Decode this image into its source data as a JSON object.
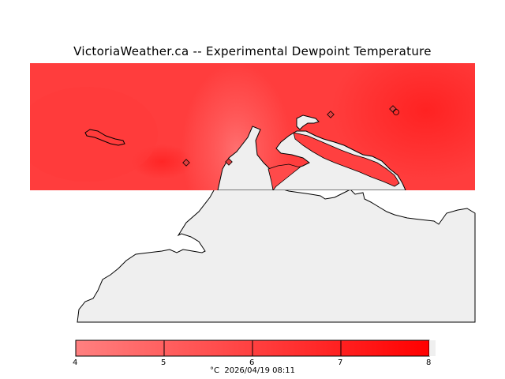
{
  "title": "VictoriaWeather.ca -- Experimental Dewpoint Temperature",
  "legend": {
    "ticks": [
      "4",
      "5",
      "6",
      "7",
      "8"
    ],
    "unit": "°C",
    "timestamp": "2026/04/19 08:11",
    "color_low": "#ff8080",
    "color_high": "#ff0000"
  },
  "colors": {
    "land": "#efefef",
    "field_base": "#ff3d3d",
    "coast_stroke": "#000000"
  },
  "stations": [
    {
      "id": "station-1",
      "icon": "diamond-marker"
    },
    {
      "id": "station-2",
      "icon": "diamond-marker"
    },
    {
      "id": "station-3",
      "icon": "diamond-marker"
    },
    {
      "id": "station-4",
      "icon": "diamond-marker"
    },
    {
      "id": "station-5",
      "icon": "diamond-marker"
    }
  ]
}
